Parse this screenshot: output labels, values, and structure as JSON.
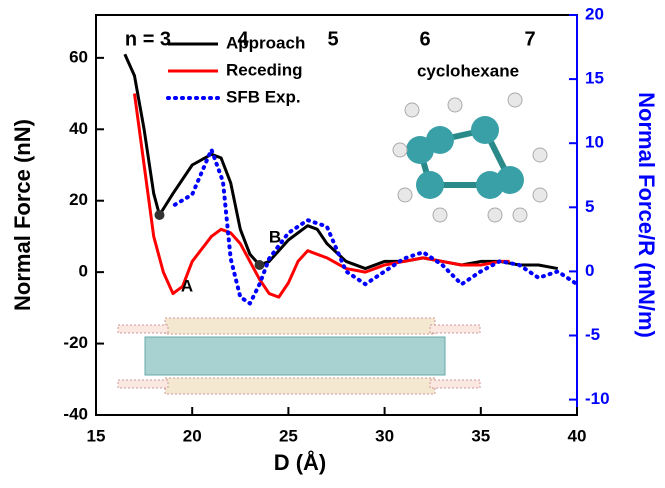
{
  "chart_data": {
    "type": "line",
    "x_label": "D (Å)",
    "y_label": "Normal Force (nN)",
    "y2_label": "Normal Force/R (mN/m)",
    "xlim": [
      15,
      40
    ],
    "xticks": [
      15,
      20,
      25,
      30,
      35,
      40
    ],
    "ylim": [
      -40,
      72
    ],
    "yticks": [
      -40,
      -20,
      0,
      20,
      40,
      60
    ],
    "y2lim": [
      -11.2,
      20
    ],
    "y2ticks": [
      -10,
      -5,
      0,
      5,
      10,
      15,
      20
    ],
    "legend": "upper left",
    "annotations": [
      "n = 3",
      "4",
      "5",
      "6",
      "7",
      "cyclohexane",
      "A",
      "B"
    ],
    "series": [
      {
        "name": "Approach",
        "color": "#000000",
        "style": "solid",
        "x": [
          16.5,
          17,
          17.5,
          18,
          18.3,
          19,
          20,
          21,
          21.5,
          22,
          22.5,
          23,
          23.5,
          24,
          25,
          26,
          26.5,
          27,
          28,
          29,
          30,
          31,
          32,
          33,
          34,
          35,
          36,
          37,
          38,
          39
        ],
        "values": [
          61,
          55,
          40,
          22,
          16,
          22,
          30,
          33,
          32,
          25,
          12,
          5,
          2,
          3,
          9,
          13,
          12,
          8,
          3,
          1,
          3,
          3,
          4,
          3,
          2,
          3,
          3,
          2,
          2,
          1
        ]
      },
      {
        "name": "Receding",
        "color": "#ff0000",
        "style": "solid",
        "x": [
          17,
          17.5,
          18,
          18.5,
          19,
          19.5,
          20,
          21,
          21.5,
          22,
          22.5,
          23,
          23.5,
          24,
          24.5,
          25,
          25.5,
          26,
          26.5,
          27,
          28,
          29,
          30,
          31,
          32,
          33,
          34,
          35,
          36,
          36.5
        ],
        "values": [
          50,
          30,
          10,
          0,
          -6,
          -4,
          3,
          10,
          12,
          11,
          8,
          3,
          -2,
          -6,
          -7,
          -3,
          3,
          6,
          5,
          4,
          1,
          0,
          2,
          3,
          4,
          3,
          2,
          2,
          3,
          3
        ]
      },
      {
        "name": "SFB Exp.",
        "color": "#0000ff",
        "style": "dotted",
        "axis": "y2",
        "x": [
          19.1,
          20,
          21,
          21.6,
          22,
          22.5,
          23,
          23.5,
          24,
          25,
          26,
          27,
          28,
          29,
          30,
          31,
          32,
          33,
          34,
          35,
          36,
          37,
          38,
          39,
          40
        ],
        "values": [
          5.2,
          6,
          9.5,
          7,
          1,
          -2,
          -2.5,
          -1,
          1,
          3,
          4,
          3.5,
          0,
          -1,
          0,
          1,
          1.5,
          0.5,
          -1,
          0,
          0.8,
          0.5,
          -0.5,
          0,
          -1
        ]
      }
    ]
  }
}
